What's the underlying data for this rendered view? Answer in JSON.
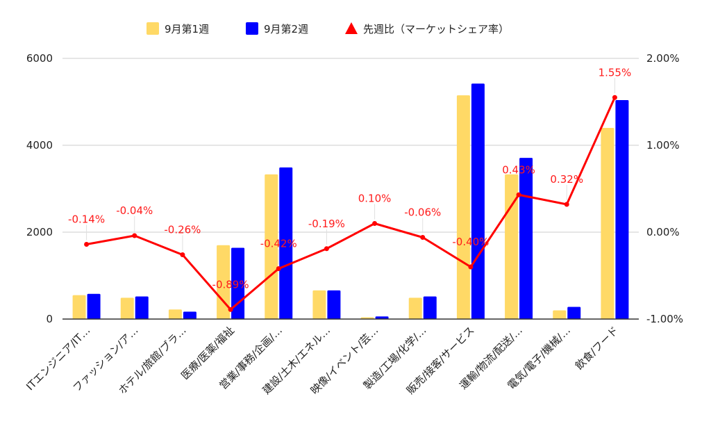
{
  "chart_data": {
    "type": "bar",
    "categories": [
      "ITエンジニア/IT…",
      "ファッション/ア…",
      "ホテル/旅館/ブラ…",
      "医療/医薬/福祉",
      "営業/事務/企画/…",
      "建設/土木/エネル…",
      "映像/イベント/芸…",
      "製造/工場/化学/…",
      "販売/接客/サービス",
      "運輸/物流/配送/…",
      "電気/電子/機械/…",
      "飲食/フード"
    ],
    "series": [
      {
        "name": "9月第1週",
        "values": [
          550,
          490,
          220,
          1700,
          3330,
          660,
          40,
          490,
          5150,
          3330,
          200,
          4400
        ],
        "color": "#ffd966",
        "kind": "bar",
        "axis": "left"
      },
      {
        "name": "9月第2週",
        "values": [
          580,
          520,
          170,
          1640,
          3490,
          660,
          60,
          520,
          5420,
          3710,
          280,
          5040
        ],
        "color": "#0000ff",
        "kind": "bar",
        "axis": "left"
      },
      {
        "name": "先週比（マーケットシェア率）",
        "values": [
          -0.14,
          -0.04,
          -0.26,
          -0.89,
          -0.42,
          -0.19,
          0.1,
          -0.06,
          -0.4,
          0.43,
          0.32,
          1.55
        ],
        "labels": [
          "-0.14%",
          "-0.04%",
          "-0.26%",
          "-0.89%",
          "-0.42%",
          "-0.19%",
          "0.10%",
          "-0.06%",
          "-0.40%",
          "0.43%",
          "0.32%",
          "1.55%"
        ],
        "color": "#ff0000",
        "kind": "line",
        "axis": "right"
      }
    ],
    "left_axis": {
      "ylim": [
        0,
        6000
      ],
      "ticks": [
        "0",
        "2000",
        "4000",
        "6000"
      ],
      "tick_values": [
        0,
        2000,
        4000,
        6000
      ]
    },
    "right_axis": {
      "ylim": [
        -1.0,
        2.0
      ],
      "ticks": [
        "-1.00%",
        "0.00%",
        "1.00%",
        "2.00%"
      ],
      "tick_values": [
        -1.0,
        0.0,
        1.0,
        2.0
      ]
    },
    "legend_position": "top",
    "grid": true
  }
}
